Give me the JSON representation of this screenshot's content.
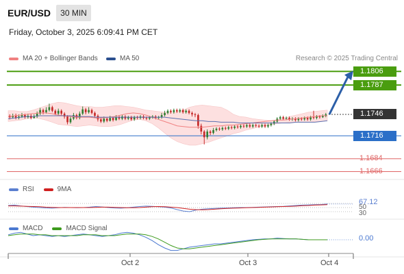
{
  "header": {
    "symbol": "EUR/USD",
    "timeframe": "30 MIN",
    "datetime": "Friday, October 3, 2025 6:09:41 PM CET"
  },
  "legend": {
    "ma20_bb": "MA 20 + Bollinger Bands",
    "ma50": "MA 50",
    "credit": "Research © 2025 Trading Central"
  },
  "colors": {
    "green": "#4a9d0f",
    "blue": "#2b6fc8",
    "red": "#e06666",
    "dark": "#333333",
    "candle_up": "#2f7d32",
    "candle_down": "#c62828",
    "band": "#fde0e0",
    "ma20": "#f08080",
    "ma50": "#5a6fb0",
    "arrow": "#2c5fa8",
    "rsi": "#5b7fd0",
    "rsi9": "#d02020",
    "macd": "#4a78d0",
    "signal": "#3c9a1c"
  },
  "price_levels": [
    {
      "value": "1.1806",
      "kind": "green-label"
    },
    {
      "value": "1.1787",
      "kind": "green-label"
    },
    {
      "value": "1.1746",
      "kind": "dark-label"
    },
    {
      "value": "1.1716",
      "kind": "blue-label"
    },
    {
      "value": "1.1684",
      "kind": "red-text"
    },
    {
      "value": "1.1666",
      "kind": "red-text"
    }
  ],
  "rsi_panel": {
    "rsi_label": "RSI",
    "ma_label": "9MA",
    "value": "67.12",
    "level_hi": "50",
    "level_lo": "30"
  },
  "macd_panel": {
    "macd_label": "MACD",
    "signal_label": "MACD Signal",
    "value": "0.00"
  },
  "chart_data": {
    "type": "candlestick",
    "x_ticks": [
      "Oct 2",
      "Oct 3",
      "Oct 4"
    ],
    "ylim": [
      1.1655,
      1.1812
    ],
    "candles": [
      [
        1.1744,
        1.1742,
        1.1746,
        1.1739
      ],
      [
        1.1742,
        1.1744,
        1.1747,
        1.174
      ],
      [
        1.1744,
        1.1741,
        1.1747,
        1.1739
      ],
      [
        1.1741,
        1.1743,
        1.1746,
        1.1739
      ],
      [
        1.1743,
        1.1745,
        1.1748,
        1.1741
      ],
      [
        1.1745,
        1.1742,
        1.1747,
        1.174
      ],
      [
        1.1742,
        1.1744,
        1.1747,
        1.174
      ],
      [
        1.1744,
        1.1741,
        1.1747,
        1.1739
      ],
      [
        1.1741,
        1.1743,
        1.1746,
        1.174
      ],
      [
        1.1743,
        1.1747,
        1.175,
        1.1741
      ],
      [
        1.1747,
        1.1752,
        1.1755,
        1.1745
      ],
      [
        1.1752,
        1.1749,
        1.1754,
        1.1746
      ],
      [
        1.1749,
        1.1752,
        1.1756,
        1.1747
      ],
      [
        1.1752,
        1.1756,
        1.1761,
        1.175
      ],
      [
        1.1756,
        1.1751,
        1.1758,
        1.1749
      ],
      [
        1.1751,
        1.1747,
        1.1753,
        1.1745
      ],
      [
        1.1747,
        1.1751,
        1.1754,
        1.1745
      ],
      [
        1.1751,
        1.1747,
        1.1753,
        1.1744
      ],
      [
        1.1747,
        1.1743,
        1.1749,
        1.174
      ],
      [
        1.1743,
        1.1735,
        1.1745,
        1.1732
      ],
      [
        1.1735,
        1.174,
        1.1743,
        1.1733
      ],
      [
        1.174,
        1.1745,
        1.1748,
        1.1738
      ],
      [
        1.1745,
        1.1741,
        1.1747,
        1.1739
      ],
      [
        1.1741,
        1.1747,
        1.175,
        1.1739
      ],
      [
        1.1747,
        1.1753,
        1.1757,
        1.1745
      ],
      [
        1.1753,
        1.1749,
        1.1755,
        1.1746
      ],
      [
        1.1749,
        1.1752,
        1.1756,
        1.1747
      ],
      [
        1.1752,
        1.1748,
        1.1754,
        1.1746
      ],
      [
        1.1748,
        1.1744,
        1.175,
        1.1741
      ],
      [
        1.1744,
        1.1739,
        1.1746,
        1.1736
      ],
      [
        1.1739,
        1.1736,
        1.1742,
        1.1734
      ],
      [
        1.1736,
        1.174,
        1.1743,
        1.1734
      ],
      [
        1.174,
        1.1737,
        1.1742,
        1.1735
      ],
      [
        1.1737,
        1.1741,
        1.1744,
        1.1736
      ],
      [
        1.1741,
        1.1738,
        1.1743,
        1.1736
      ],
      [
        1.1738,
        1.1742,
        1.1745,
        1.1737
      ],
      [
        1.1742,
        1.174,
        1.1744,
        1.1738
      ],
      [
        1.174,
        1.1743,
        1.1745,
        1.1738
      ],
      [
        1.1743,
        1.174,
        1.1745,
        1.1738
      ],
      [
        1.174,
        1.1742,
        1.1744,
        1.1738
      ],
      [
        1.1742,
        1.1739,
        1.1744,
        1.1737
      ],
      [
        1.1739,
        1.1742,
        1.1744,
        1.1737
      ],
      [
        1.1742,
        1.1741,
        1.1744,
        1.1739
      ],
      [
        1.1741,
        1.1743,
        1.1745,
        1.1739
      ],
      [
        1.1743,
        1.1741,
        1.1745,
        1.1739
      ],
      [
        1.1741,
        1.174,
        1.1743,
        1.1738
      ],
      [
        1.174,
        1.1742,
        1.1744,
        1.1738
      ],
      [
        1.1742,
        1.1743,
        1.1745,
        1.174
      ],
      [
        1.1743,
        1.1741,
        1.1745,
        1.1739
      ],
      [
        1.1741,
        1.1742,
        1.1744,
        1.1739
      ],
      [
        1.1742,
        1.1745,
        1.1748,
        1.174
      ],
      [
        1.1745,
        1.1748,
        1.1751,
        1.1743
      ],
      [
        1.1748,
        1.1751,
        1.1753,
        1.1746
      ],
      [
        1.1751,
        1.1749,
        1.1753,
        1.1747
      ],
      [
        1.1749,
        1.1752,
        1.1754,
        1.1747
      ],
      [
        1.1752,
        1.175,
        1.1754,
        1.1748
      ],
      [
        1.175,
        1.1752,
        1.1754,
        1.1748
      ],
      [
        1.1752,
        1.1749,
        1.1754,
        1.1747
      ],
      [
        1.1749,
        1.1751,
        1.1753,
        1.1747
      ],
      [
        1.1751,
        1.1748,
        1.1753,
        1.1746
      ],
      [
        1.1748,
        1.1746,
        1.175,
        1.1743
      ],
      [
        1.1746,
        1.1745,
        1.1748,
        1.1742
      ],
      [
        1.1745,
        1.173,
        1.1747,
        1.1726
      ],
      [
        1.173,
        1.1722,
        1.1733,
        1.1718
      ],
      [
        1.1722,
        1.1714,
        1.1724,
        1.1704
      ],
      [
        1.1714,
        1.1722,
        1.1725,
        1.1711
      ],
      [
        1.1722,
        1.172,
        1.1724,
        1.1717
      ],
      [
        1.172,
        1.1724,
        1.1727,
        1.1718
      ],
      [
        1.1724,
        1.1726,
        1.1728,
        1.1722
      ],
      [
        1.1726,
        1.1725,
        1.1728,
        1.1723
      ],
      [
        1.1725,
        1.1727,
        1.1729,
        1.1723
      ],
      [
        1.1727,
        1.1726,
        1.1729,
        1.1724
      ],
      [
        1.1726,
        1.1728,
        1.173,
        1.1724
      ],
      [
        1.1728,
        1.1727,
        1.173,
        1.1725
      ],
      [
        1.1727,
        1.1729,
        1.1731,
        1.1725
      ],
      [
        1.1729,
        1.1728,
        1.1731,
        1.1726
      ],
      [
        1.1728,
        1.173,
        1.1732,
        1.1726
      ],
      [
        1.173,
        1.1729,
        1.1732,
        1.1727
      ],
      [
        1.1729,
        1.1731,
        1.1733,
        1.1727
      ],
      [
        1.1731,
        1.1729,
        1.1733,
        1.1727
      ],
      [
        1.1729,
        1.1731,
        1.1733,
        1.1727
      ],
      [
        1.1731,
        1.173,
        1.1733,
        1.1728
      ],
      [
        1.173,
        1.1729,
        1.1732,
        1.1727
      ],
      [
        1.1729,
        1.1731,
        1.1733,
        1.1727
      ],
      [
        1.1731,
        1.1729,
        1.1733,
        1.1727
      ],
      [
        1.1729,
        1.1731,
        1.1733,
        1.1727
      ],
      [
        1.1731,
        1.1733,
        1.1735,
        1.1729
      ],
      [
        1.1733,
        1.1736,
        1.1738,
        1.1731
      ],
      [
        1.1736,
        1.174,
        1.1742,
        1.1734
      ],
      [
        1.174,
        1.1742,
        1.1744,
        1.1738
      ],
      [
        1.1742,
        1.174,
        1.1744,
        1.1738
      ],
      [
        1.174,
        1.1741,
        1.1743,
        1.1738
      ],
      [
        1.1741,
        1.1739,
        1.1743,
        1.1737
      ],
      [
        1.1739,
        1.174,
        1.1742,
        1.1737
      ],
      [
        1.174,
        1.1738,
        1.1742,
        1.1736
      ],
      [
        1.1738,
        1.174,
        1.1742,
        1.1736
      ],
      [
        1.174,
        1.1739,
        1.1742,
        1.1737
      ],
      [
        1.1739,
        1.1741,
        1.1743,
        1.1737
      ],
      [
        1.1741,
        1.1739,
        1.1743,
        1.1737
      ],
      [
        1.1739,
        1.1742,
        1.1744,
        1.1737
      ],
      [
        1.1742,
        1.1741,
        1.1751,
        1.1739
      ],
      [
        1.1741,
        1.1743,
        1.1745,
        1.1739
      ],
      [
        1.1743,
        1.1742,
        1.1745,
        1.174
      ],
      [
        1.1742,
        1.1744,
        1.1746,
        1.1741
      ],
      [
        1.1744,
        1.1746,
        1.1748,
        1.1742
      ]
    ],
    "bollinger": {
      "upper": [
        1.1751,
        1.1751,
        1.175,
        1.175,
        1.1752,
        1.1755,
        1.1758,
        1.1761,
        1.1763,
        1.1762,
        1.176,
        1.1758,
        1.1757,
        1.1757,
        1.1756,
        1.1756,
        1.1757,
        1.1758,
        1.1758,
        1.1757,
        1.1756,
        1.1754,
        1.1752,
        1.1751,
        1.175,
        1.1749,
        1.1748,
        1.1749,
        1.1752,
        1.1756,
        1.1758,
        1.1759,
        1.1758,
        1.1757,
        1.1756,
        1.1752,
        1.1746,
        1.1743,
        1.1742,
        1.174,
        1.1739,
        1.1738,
        1.1737,
        1.1738,
        1.174,
        1.1743,
        1.1745,
        1.1747,
        1.1749,
        1.175,
        1.1751,
        1.1752
      ],
      "ma20": [
        1.1743,
        1.1744,
        1.1745,
        1.1746,
        1.1747,
        1.1748,
        1.1748,
        1.1747,
        1.1745,
        1.1744,
        1.1743,
        1.1742,
        1.1742,
        1.1742,
        1.1741,
        1.1741,
        1.1742,
        1.1743,
        1.1745,
        1.1747,
        1.1748,
        1.1747,
        1.1745,
        1.1742,
        1.1739,
        1.1736,
        1.1733,
        1.173,
        1.1729,
        1.1728,
        1.1728,
        1.1728,
        1.1729,
        1.173,
        1.173,
        1.1731,
        1.1731,
        1.1732,
        1.1733,
        1.1734,
        1.1735,
        1.1736,
        1.1737,
        1.1738,
        1.1738,
        1.1739,
        1.174,
        1.1741,
        1.1742,
        1.1743,
        1.1744,
        1.1744
      ],
      "lower": [
        1.1736,
        1.1737,
        1.1738,
        1.174,
        1.1741,
        1.174,
        1.1738,
        1.1735,
        1.1732,
        1.1731,
        1.173,
        1.1729,
        1.173,
        1.1731,
        1.173,
        1.1729,
        1.1729,
        1.173,
        1.1732,
        1.1735,
        1.1738,
        1.1739,
        1.1737,
        1.1733,
        1.1727,
        1.172,
        1.1713,
        1.1708,
        1.1705,
        1.1703,
        1.1703,
        1.1705,
        1.1707,
        1.171,
        1.1713,
        1.1716,
        1.1719,
        1.1721,
        1.1724,
        1.1726,
        1.1728,
        1.173,
        1.1731,
        1.1733,
        1.1734,
        1.1735,
        1.1735,
        1.1735,
        1.1735,
        1.1736,
        1.1736,
        1.1737
      ]
    },
    "ma50": [
      1.174,
      1.1741,
      1.1742,
      1.1743,
      1.1743,
      1.1744,
      1.1744,
      1.1744,
      1.1744,
      1.1744,
      1.1744,
      1.1743,
      1.1743,
      1.1743,
      1.1742,
      1.1742,
      1.1742,
      1.1742,
      1.1742,
      1.1742,
      1.1742,
      1.1742,
      1.1742,
      1.1742,
      1.1742,
      1.1742,
      1.1741,
      1.174,
      1.1739,
      1.1738,
      1.1737,
      1.1737,
      1.1736,
      1.1736,
      1.1735,
      1.1735,
      1.1735,
      1.1734,
      1.1734,
      1.1734,
      1.1734,
      1.1734,
      1.1734,
      1.1734,
      1.1734,
      1.1734,
      1.1735,
      1.1735,
      1.1735,
      1.1735,
      1.1736,
      1.1737
    ],
    "forecast_arrow": {
      "from": 1.1746,
      "to": 1.1806
    },
    "rsi": {
      "ylim": [
        0,
        100
      ],
      "rsi": [
        60,
        62,
        58,
        55,
        52,
        50,
        48,
        47,
        49,
        51,
        50,
        49,
        50,
        52,
        55,
        53,
        50,
        48,
        47,
        49,
        52,
        55,
        57,
        56,
        54,
        52,
        48,
        40,
        33,
        30,
        38,
        42,
        44,
        46,
        47,
        48,
        49,
        50,
        50,
        51,
        52,
        53,
        54,
        55,
        56,
        58,
        60,
        62,
        63,
        64,
        65,
        67.12
      ],
      "ma9": [
        58,
        58,
        57,
        56,
        55,
        54,
        52,
        51,
        50,
        50,
        50,
        50,
        50,
        50,
        51,
        52,
        52,
        51,
        50,
        49,
        49,
        50,
        52,
        54,
        55,
        54,
        52,
        50,
        46,
        42,
        40,
        39,
        40,
        42,
        44,
        46,
        47,
        48,
        49,
        50,
        51,
        52,
        53,
        54,
        55,
        56,
        57,
        59,
        60,
        62,
        63,
        64
      ]
    },
    "macd": {
      "macd": [
        0.6,
        0.8,
        0.9,
        0.7,
        0.5,
        0.6,
        0.5,
        0.4,
        0.5,
        0.4,
        0.5,
        0.6,
        0.7,
        0.6,
        0.5,
        0.4,
        0.5,
        0.6,
        0.8,
        0.9,
        0.8,
        0.6,
        0.3,
        -0.1,
        -0.6,
        -1.0,
        -1.3,
        -1.3,
        -1.1,
        -0.9,
        -0.8,
        -0.7,
        -0.6,
        -0.5,
        -0.5,
        -0.4,
        -0.3,
        -0.2,
        -0.1,
        0.0,
        0.05,
        0.1,
        0.1,
        0.2,
        0.15,
        0.1,
        0.1,
        0.05,
        0.0,
        0.0,
        0.0,
        0.0
      ],
      "signal": [
        0.5,
        0.6,
        0.7,
        0.7,
        0.7,
        0.6,
        0.6,
        0.5,
        0.5,
        0.5,
        0.5,
        0.5,
        0.6,
        0.6,
        0.6,
        0.5,
        0.5,
        0.5,
        0.6,
        0.7,
        0.7,
        0.7,
        0.6,
        0.4,
        0.1,
        -0.3,
        -0.7,
        -1.0,
        -1.1,
        -1.1,
        -1.0,
        -0.9,
        -0.8,
        -0.7,
        -0.6,
        -0.5,
        -0.4,
        -0.3,
        -0.2,
        -0.1,
        0.0,
        0.05,
        0.1,
        0.1,
        0.1,
        0.1,
        0.1,
        0.05,
        0.0,
        0.0,
        0.0,
        0.0
      ]
    }
  }
}
